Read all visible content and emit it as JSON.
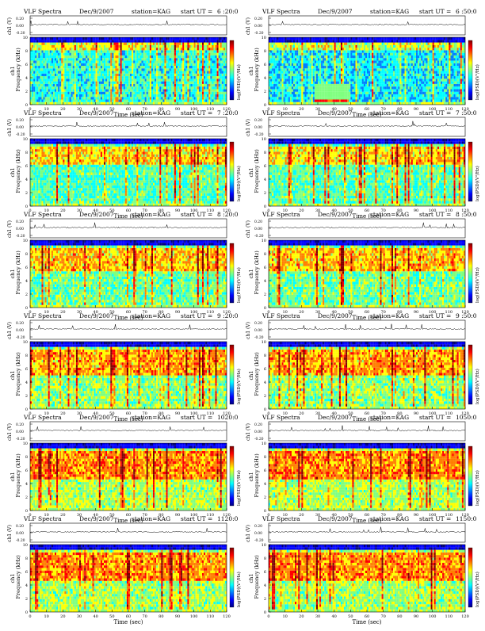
{
  "page": {
    "common": {
      "title_left": "VLF Spectra",
      "date": "Dec/9/2007",
      "station": "station=KAG",
      "start_prefix": "start  UT =",
      "ch1_volt_label": "ch1 (V)",
      "ch1_volt_ticks": [
        "0.20",
        "0.00",
        "-0.20"
      ],
      "spec_ylabel_1": "ch1",
      "spec_ylabel_2": "Frequency  (kHz)",
      "colorbar_label": "log(PSD)(V²/Hz)",
      "xlabel": "Time  (sec)"
    },
    "colors": {
      "colormap": [
        "#00007f",
        "#0000ff",
        "#007fff",
        "#00ffff",
        "#7fff7f",
        "#ffff00",
        "#ff7f00",
        "#ff0000",
        "#7f0000"
      ],
      "background": "#ffffff",
      "axis": "#000000"
    }
  },
  "chart_data": [
    {
      "type": "heatmap",
      "start_time": "6 :20:0",
      "ylim": [
        0,
        10
      ],
      "xlim": [
        0,
        120
      ],
      "yticks": [
        0,
        2,
        4,
        6,
        8,
        10
      ],
      "xticks": [
        0,
        10,
        20,
        30,
        40,
        50,
        60,
        70,
        80,
        90,
        100,
        110,
        120
      ],
      "features": {
        "upper_band_khz": [
          8,
          9.2
        ],
        "level": 0.45
      }
    },
    {
      "type": "heatmap",
      "start_time": "6 :50:0",
      "ylim": [
        0,
        10
      ],
      "xlim": [
        0,
        120
      ],
      "yticks": [
        0,
        2,
        4,
        6,
        8,
        10
      ],
      "xticks": [
        0,
        10,
        20,
        30,
        40,
        50,
        60,
        70,
        80,
        90,
        100,
        110,
        120
      ],
      "features": {
        "upper_band_khz": [
          8,
          9.2
        ],
        "level": 0.42,
        "burst_sec": [
          28,
          48
        ]
      }
    },
    {
      "type": "heatmap",
      "start_time": "7 :20:0",
      "ylim": [
        0,
        10
      ],
      "xlim": [
        0,
        120
      ],
      "yticks": [
        0,
        2,
        4,
        6,
        8,
        10
      ],
      "xticks": [
        0,
        10,
        20,
        30,
        40,
        50,
        60,
        70,
        80,
        90,
        100,
        110,
        120
      ],
      "features": {
        "upper_band_khz": [
          6,
          9
        ],
        "level": 0.5
      }
    },
    {
      "type": "heatmap",
      "start_time": "7 :50:0",
      "ylim": [
        0,
        10
      ],
      "xlim": [
        0,
        120
      ],
      "yticks": [
        0,
        2,
        4,
        6,
        8,
        10
      ],
      "xticks": [
        0,
        10,
        20,
        30,
        40,
        50,
        60,
        70,
        80,
        90,
        100,
        110,
        120
      ],
      "features": {
        "upper_band_khz": [
          6,
          9
        ],
        "level": 0.5
      }
    },
    {
      "type": "heatmap",
      "start_time": "8 :20:0",
      "ylim": [
        0,
        10
      ],
      "xlim": [
        0,
        120
      ],
      "yticks": [
        0,
        2,
        4,
        6,
        8,
        10
      ],
      "xticks": [
        0,
        10,
        20,
        30,
        40,
        50,
        60,
        70,
        80,
        90,
        100,
        110,
        120
      ],
      "features": {
        "upper_band_khz": [
          5.5,
          9
        ],
        "level": 0.52
      }
    },
    {
      "type": "heatmap",
      "start_time": "8 :50:0",
      "ylim": [
        0,
        10
      ],
      "xlim": [
        0,
        120
      ],
      "yticks": [
        0,
        2,
        4,
        6,
        8,
        10
      ],
      "xticks": [
        0,
        10,
        20,
        30,
        40,
        50,
        60,
        70,
        80,
        90,
        100,
        110,
        120
      ],
      "features": {
        "upper_band_khz": [
          5.5,
          9
        ],
        "level": 0.52
      }
    },
    {
      "type": "heatmap",
      "start_time": "9 :20:0",
      "ylim": [
        0,
        10
      ],
      "xlim": [
        0,
        120
      ],
      "yticks": [
        0,
        2,
        4,
        6,
        8,
        10
      ],
      "xticks": [
        0,
        10,
        20,
        30,
        40,
        50,
        60,
        70,
        80,
        90,
        100,
        110,
        120
      ],
      "features": {
        "upper_band_khz": [
          5,
          9
        ],
        "level": 0.55
      }
    },
    {
      "type": "heatmap",
      "start_time": "9 :50:0",
      "ylim": [
        0,
        10
      ],
      "xlim": [
        0,
        120
      ],
      "yticks": [
        0,
        2,
        4,
        6,
        8,
        10
      ],
      "xticks": [
        0,
        10,
        20,
        30,
        40,
        50,
        60,
        70,
        80,
        90,
        100,
        110,
        120
      ],
      "features": {
        "upper_band_khz": [
          5,
          9
        ],
        "level": 0.55
      }
    },
    {
      "type": "heatmap",
      "start_time": "1020:0",
      "ylim": [
        0,
        10
      ],
      "xlim": [
        0,
        120
      ],
      "yticks": [
        0,
        2,
        4,
        6,
        8,
        10
      ],
      "xticks": [
        0,
        10,
        20,
        30,
        40,
        50,
        60,
        70,
        80,
        90,
        100,
        110,
        120
      ],
      "features": {
        "upper_band_khz": [
          4.5,
          9
        ],
        "level": 0.58
      }
    },
    {
      "type": "heatmap",
      "start_time": "1050:0",
      "ylim": [
        0,
        10
      ],
      "xlim": [
        0,
        120
      ],
      "yticks": [
        0,
        2,
        4,
        6,
        8,
        10
      ],
      "xticks": [
        0,
        10,
        20,
        30,
        40,
        50,
        60,
        70,
        80,
        90,
        100,
        110,
        120
      ],
      "features": {
        "upper_band_khz": [
          4.5,
          9
        ],
        "level": 0.58
      }
    },
    {
      "type": "heatmap",
      "start_time": "1120:0",
      "ylim": [
        0,
        10
      ],
      "xlim": [
        0,
        120
      ],
      "yticks": [
        0,
        2,
        4,
        6,
        8,
        10
      ],
      "xticks": [
        0,
        10,
        20,
        30,
        40,
        50,
        60,
        70,
        80,
        90,
        100,
        110,
        120
      ],
      "features": {
        "upper_band_khz": [
          4.5,
          9
        ],
        "level": 0.57
      }
    },
    {
      "type": "heatmap",
      "start_time": "1150:0",
      "ylim": [
        0,
        10
      ],
      "xlim": [
        0,
        120
      ],
      "yticks": [
        0,
        2,
        4,
        6,
        8,
        10
      ],
      "xticks": [
        0,
        10,
        20,
        30,
        40,
        50,
        60,
        70,
        80,
        90,
        100,
        110,
        120
      ],
      "features": {
        "upper_band_khz": [
          4.5,
          9
        ],
        "level": 0.57
      }
    }
  ]
}
